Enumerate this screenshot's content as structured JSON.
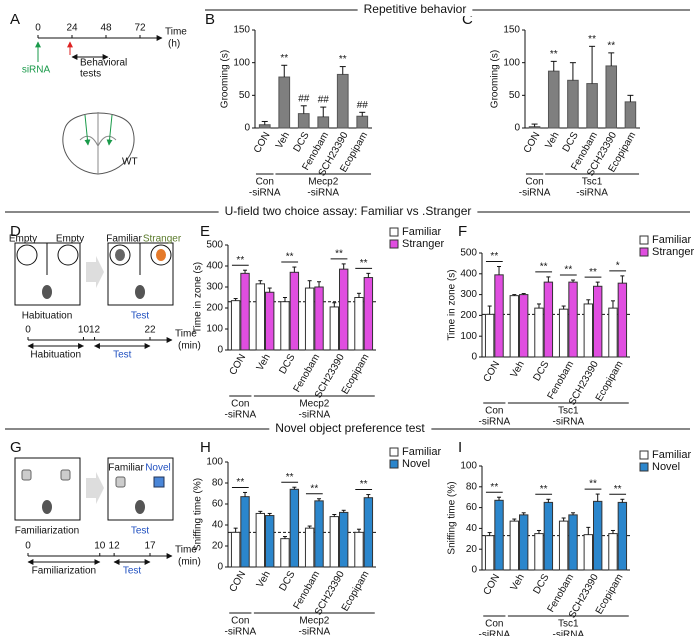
{
  "panels": [
    "A",
    "B",
    "C",
    "D",
    "E",
    "F",
    "G",
    "H",
    "I"
  ],
  "sections": [
    "Repetitive behavior",
    "U-field two choice assay: Familiar vs .Stranger",
    "Novel object preference test"
  ],
  "schematics": {
    "a": {
      "timeline": {
        "ticks": [
          0,
          24,
          48,
          72
        ],
        "label": "Time",
        "unit": "(h)"
      },
      "injection": "siRNA",
      "tests": [
        "Behavioral",
        "tests"
      ],
      "genotype": "WT"
    },
    "d": {
      "boxes": [
        "Empty",
        "Empty",
        "Familiar",
        "Stranger"
      ],
      "stages": [
        "Habituation",
        "Test"
      ],
      "timeline": {
        "ticks": [
          0,
          10,
          12,
          22
        ],
        "label": "Time",
        "unit": "(min)"
      },
      "phases": [
        "Habituation",
        "Test"
      ]
    },
    "g": {
      "boxes": [
        "Familiar",
        "Novel"
      ],
      "stages": [
        "Familiarization",
        "Test"
      ],
      "timeline": {
        "ticks": [
          0,
          10,
          12,
          17
        ],
        "label": "Time",
        "unit": "(min)"
      },
      "phases": [
        "Familiarization",
        "Test"
      ]
    }
  },
  "chart_data": [
    {
      "type": "bar",
      "ylabel": "Grooming (s)",
      "categories": [
        "CON",
        "Veh",
        "DCS",
        "Fenobam",
        "SCH23390",
        "Ecopipam"
      ],
      "values": [
        5,
        78,
        22,
        17,
        82,
        18
      ],
      "errors": [
        5,
        18,
        12,
        15,
        12,
        6
      ],
      "color": "#7f7f7f",
      "significance": [
        null,
        "**",
        "##",
        "##",
        "**",
        "##"
      ],
      "ylim": [
        0,
        150
      ],
      "yticks": [
        0,
        50,
        100,
        150
      ],
      "groups": [
        [
          "Con",
          "-siRNA"
        ],
        [
          "Mecp2",
          "-siRNA"
        ]
      ]
    },
    {
      "type": "bar",
      "ylabel": "Grooming (s)",
      "categories": [
        "CON",
        "Veh",
        "DCS",
        "Fenobam",
        "SCH23390",
        "Ecopipam"
      ],
      "values": [
        2,
        87,
        73,
        68,
        95,
        40
      ],
      "errors": [
        4,
        15,
        27,
        57,
        20,
        10
      ],
      "color": "#7f7f7f",
      "significance": [
        null,
        "**",
        null,
        "**",
        "**",
        null
      ],
      "ylim": [
        0,
        150
      ],
      "yticks": [
        0,
        50,
        100,
        150
      ],
      "groups": [
        [
          "Con",
          "-siRNA"
        ],
        [
          "Tsc1",
          "-siRNA"
        ]
      ]
    },
    {
      "type": "grouped_bar",
      "ylabel": "Time in zone (s)",
      "categories": [
        "CON",
        "Veh",
        "DCS",
        "Fenobam",
        "SCH23390",
        "Ecopipam"
      ],
      "series": [
        {
          "name": "Familiar",
          "color": "#ffffff",
          "values": [
            235,
            315,
            230,
            295,
            205,
            250
          ],
          "errors": [
            10,
            15,
            20,
            35,
            20,
            20
          ]
        },
        {
          "name": "Stranger",
          "color": "#e04ee0",
          "values": [
            365,
            275,
            370,
            300,
            385,
            345
          ],
          "errors": [
            15,
            20,
            25,
            25,
            25,
            20
          ]
        }
      ],
      "significance": [
        "**",
        null,
        "**",
        null,
        "**",
        "**"
      ],
      "reference": 230,
      "ylim": [
        0,
        500
      ],
      "yticks": [
        0,
        100,
        200,
        300,
        400,
        500
      ],
      "groups": [
        [
          "Con",
          "-siRNA"
        ],
        [
          "Mecp2",
          "-siRNA"
        ]
      ]
    },
    {
      "type": "grouped_bar",
      "ylabel": "Time in zone (s)",
      "categories": [
        "CON",
        "Veh",
        "DCS",
        "Fenobam",
        "SCH23390",
        "Ecopipam"
      ],
      "series": [
        {
          "name": "Familiar",
          "color": "#ffffff",
          "values": [
            205,
            295,
            235,
            230,
            255,
            235
          ],
          "errors": [
            40,
            5,
            20,
            15,
            20,
            35
          ]
        },
        {
          "name": "Stranger",
          "color": "#e04ee0",
          "values": [
            395,
            300,
            360,
            360,
            340,
            355
          ],
          "errors": [
            40,
            5,
            25,
            10,
            20,
            35
          ]
        }
      ],
      "significance": [
        "**",
        null,
        "**",
        "**",
        "**",
        "*"
      ],
      "reference": 205,
      "ylim": [
        0,
        500
      ],
      "yticks": [
        0,
        100,
        200,
        300,
        400,
        500
      ],
      "groups": [
        [
          "Con",
          "-siRNA"
        ],
        [
          "Tsc1",
          "-siRNA"
        ]
      ]
    },
    {
      "type": "grouped_bar",
      "ylabel": "Sniffing time (%)",
      "categories": [
        "CON",
        "Veh",
        "DCS",
        "Fenobam",
        "SCH23390",
        "Ecopipam"
      ],
      "series": [
        {
          "name": "Familiar",
          "color": "#ffffff",
          "values": [
            33,
            51,
            27,
            37,
            48,
            33
          ],
          "errors": [
            4,
            2,
            2,
            2,
            2,
            3
          ]
        },
        {
          "name": "Novel",
          "color": "#2b86cc",
          "values": [
            67,
            49,
            74,
            63,
            52,
            66
          ],
          "errors": [
            4,
            2,
            2,
            2,
            2,
            3
          ]
        }
      ],
      "significance": [
        "**",
        null,
        "**",
        "**",
        null,
        "**"
      ],
      "reference": 33,
      "ylim": [
        0,
        100
      ],
      "yticks": [
        0,
        20,
        40,
        60,
        80,
        100
      ],
      "groups": [
        [
          "Con",
          "-siRNA"
        ],
        [
          "Mecp2",
          "-siRNA"
        ]
      ]
    },
    {
      "type": "grouped_bar",
      "ylabel": "Sniffing time (%)",
      "categories": [
        "CON",
        "Veh",
        "DCS",
        "Fenobam",
        "SCH23390",
        "Ecopipam"
      ],
      "series": [
        {
          "name": "Familiar",
          "color": "#ffffff",
          "values": [
            33,
            47,
            35,
            47,
            34,
            35
          ],
          "errors": [
            3,
            2,
            3,
            3,
            7,
            3
          ]
        },
        {
          "name": "Novel",
          "color": "#2b86cc",
          "values": [
            67,
            53,
            65,
            53,
            66,
            65
          ],
          "errors": [
            3,
            2,
            3,
            2,
            7,
            3
          ]
        }
      ],
      "significance": [
        "**",
        null,
        "**",
        null,
        "**",
        "**"
      ],
      "reference": 33,
      "ylim": [
        0,
        100
      ],
      "yticks": [
        0,
        20,
        40,
        60,
        80,
        100
      ],
      "groups": [
        [
          "Con",
          "-siRNA"
        ],
        [
          "Tsc1",
          "-siRNA"
        ]
      ]
    }
  ]
}
